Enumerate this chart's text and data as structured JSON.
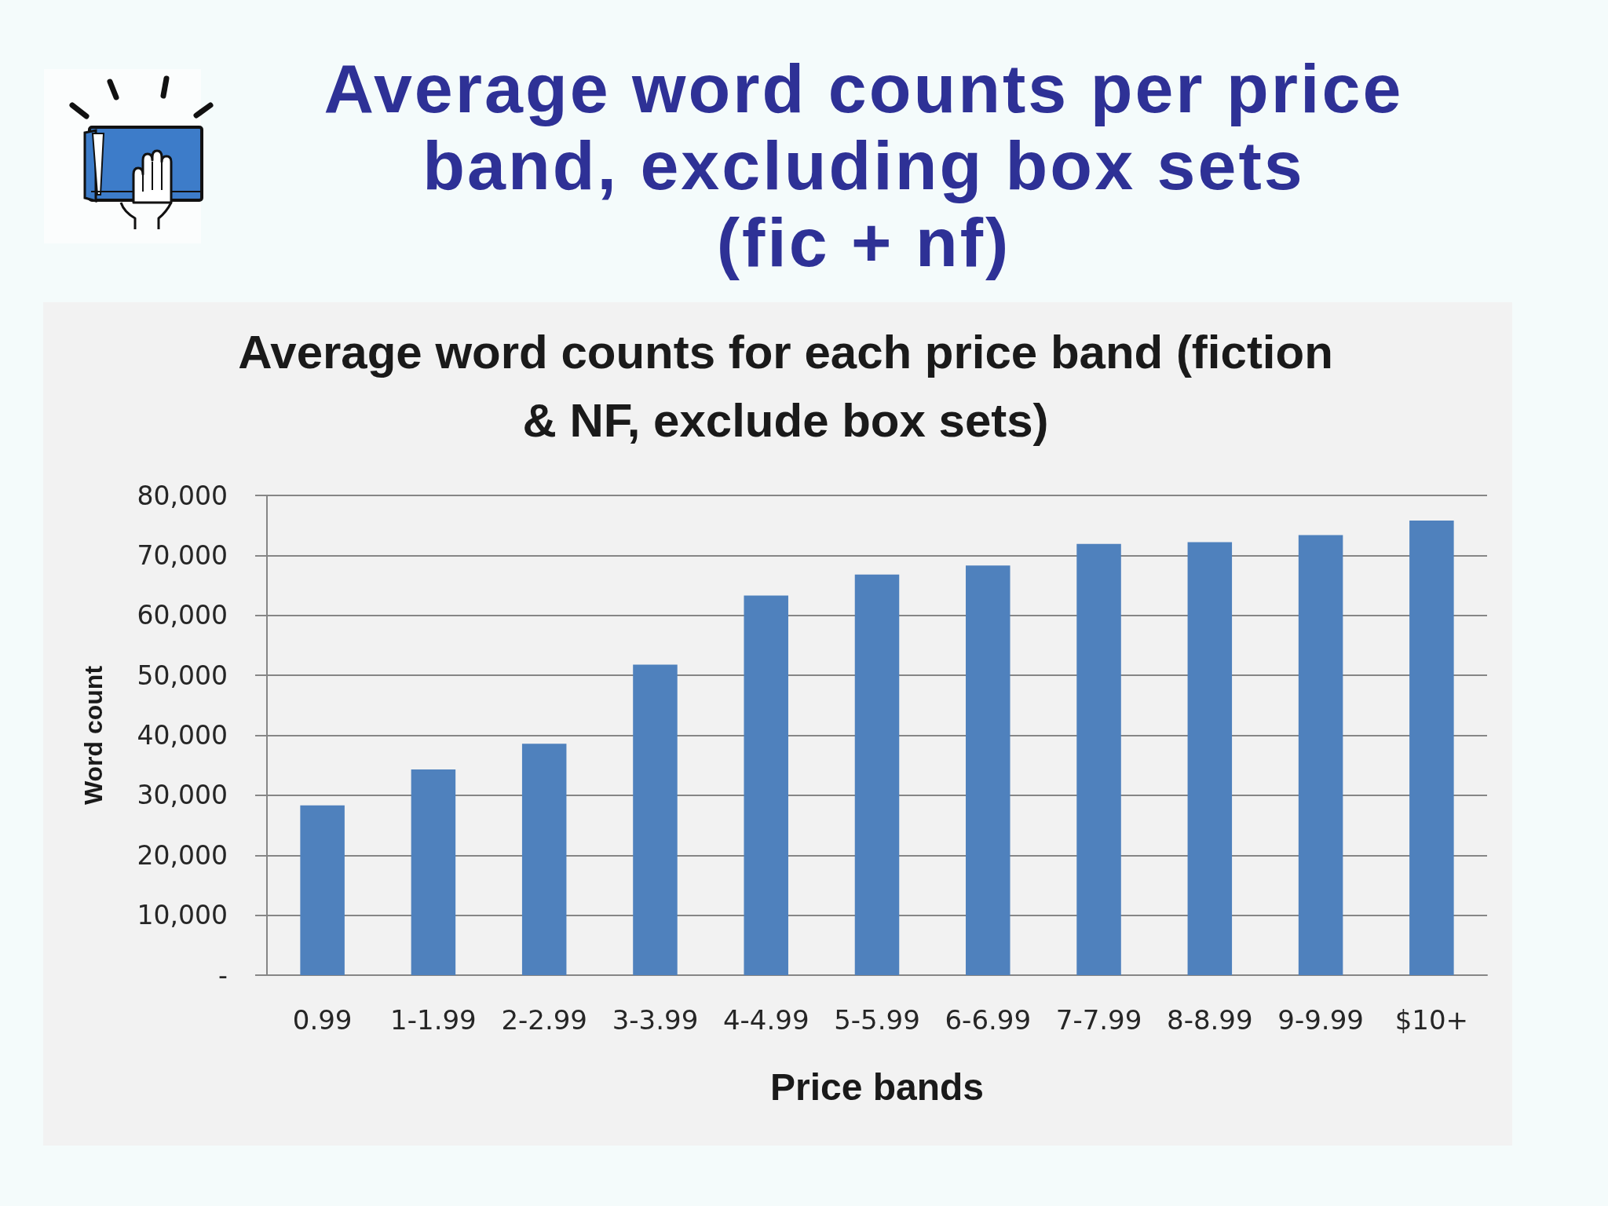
{
  "chart_data": {
    "type": "bar",
    "title": "Average word counts per price band, excluding box sets\n(fic + nf)",
    "subtitle": "Average word counts for each price band (fiction & NF, exclude box sets)",
    "xlabel": "Price bands",
    "ylabel": "Word count",
    "categories": [
      "0.99",
      "1-1.99",
      "2-2.99",
      "3-3.99",
      "4-4.99",
      "5-5.99",
      "6-6.99",
      "7-7.99",
      "8-8.99",
      "9-9.99",
      "$10+"
    ],
    "values": [
      28300,
      34300,
      38600,
      51800,
      63300,
      66800,
      68300,
      71900,
      72200,
      73400,
      75800
    ],
    "color": "#4f81bd",
    "ylim": [
      0,
      80000
    ],
    "yticks": [
      {
        "value": 0,
        "label": "-"
      },
      {
        "value": 10000,
        "label": "10,000"
      },
      {
        "value": 20000,
        "label": "20,000"
      },
      {
        "value": 30000,
        "label": "30,000"
      },
      {
        "value": 40000,
        "label": "40,000"
      },
      {
        "value": 50000,
        "label": "50,000"
      },
      {
        "value": 60000,
        "label": "60,000"
      },
      {
        "value": 70000,
        "label": "70,000"
      },
      {
        "value": 80000,
        "label": "80,000"
      }
    ],
    "grid": "y"
  }
}
